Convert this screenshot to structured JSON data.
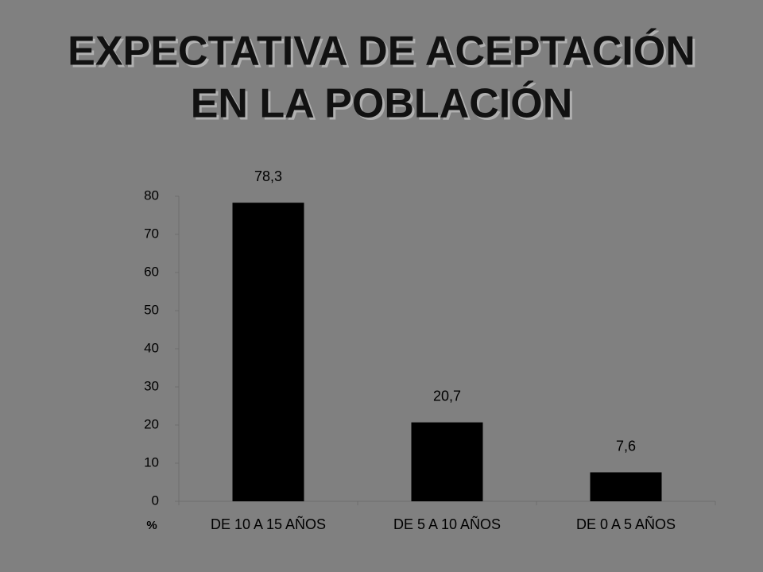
{
  "chart_data": {
    "type": "bar",
    "title": [
      "EXPECTATIVA DE ACEPTACIÓN",
      "EN LA POBLACIÓN"
    ],
    "ylabel": "%",
    "categories": [
      "DE 10 A 15 AÑOS",
      "DE 5 A 10 AÑOS",
      "DE 0 A 5 AÑOS"
    ],
    "values": [
      78.3,
      20.7,
      7.6
    ],
    "value_labels": [
      "78,3",
      "20,7",
      "7,6"
    ],
    "color": "#000000",
    "ylim": [
      0,
      80
    ],
    "yticks": [
      0,
      10,
      20,
      30,
      40,
      50,
      60,
      70,
      80
    ],
    "grid": false
  }
}
